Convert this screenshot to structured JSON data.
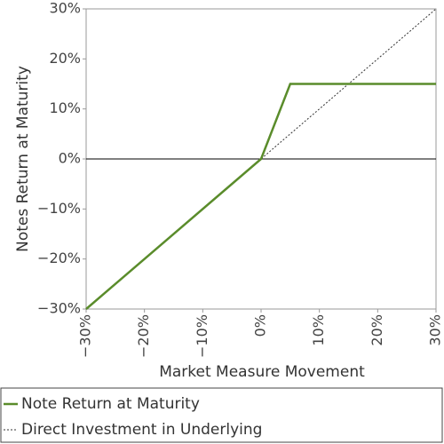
{
  "chart_data": {
    "type": "line",
    "xlabel": "Market Measure Movement",
    "ylabel": "Notes Return at Maturity",
    "xlim": [
      -30,
      30
    ],
    "ylim": [
      -30,
      30
    ],
    "xticks": [
      {
        "value": -30,
        "label": "−30%"
      },
      {
        "value": -20,
        "label": "−20%"
      },
      {
        "value": -10,
        "label": "−10%"
      },
      {
        "value": 0,
        "label": "0%"
      },
      {
        "value": 10,
        "label": "10%"
      },
      {
        "value": 20,
        "label": "20%"
      },
      {
        "value": 30,
        "label": "30%"
      }
    ],
    "yticks": [
      {
        "value": -30,
        "label": "−30%"
      },
      {
        "value": -20,
        "label": "−20%"
      },
      {
        "value": -10,
        "label": "−10%"
      },
      {
        "value": 0,
        "label": "0%"
      },
      {
        "value": 10,
        "label": "10%"
      },
      {
        "value": 20,
        "label": "20%"
      },
      {
        "value": 30,
        "label": "30%"
      }
    ],
    "series": [
      {
        "name": "Note Return at Maturity",
        "color": "#5a8c2b",
        "style": "solid",
        "x": [
          -30,
          0,
          5,
          30
        ],
        "values": [
          -30,
          0,
          15,
          15
        ]
      },
      {
        "name": "Direct Investment in Underlying",
        "color": "#333333",
        "style": "dotted",
        "x": [
          -30,
          30
        ],
        "values": [
          -30,
          30
        ]
      }
    ],
    "legend": "bottom"
  }
}
